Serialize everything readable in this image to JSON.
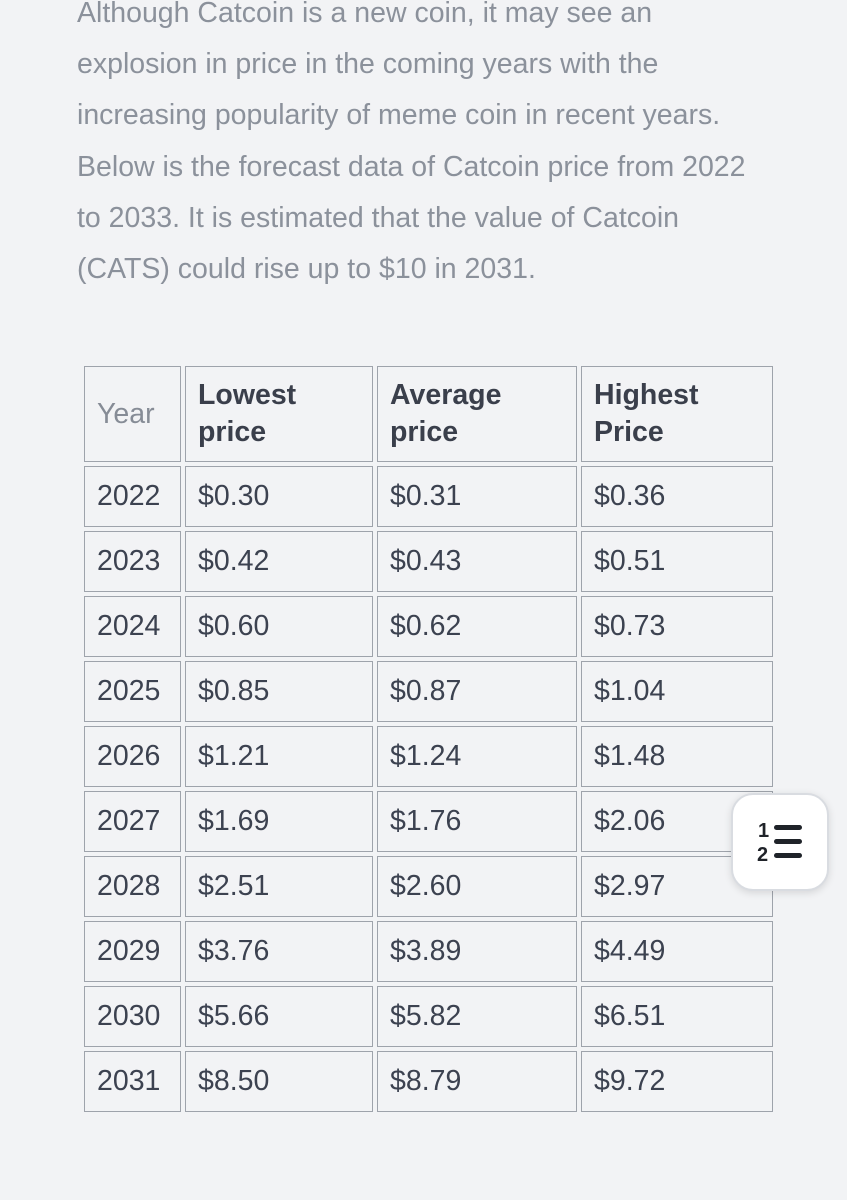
{
  "intro": {
    "text": "Although Catcoin is a new coin, it may see an explosion in price in the coming years with the increasing popularity of meme coin in recent years. Below is the forecast data of Catcoin price from 2022 to 2033. It is estimated that the value of Catcoin (CATS) could rise up to $10 in 2031."
  },
  "table": {
    "headers": {
      "year": "Year",
      "lowest": "Lowest price",
      "average": "Average price",
      "highest": "Highest Price"
    },
    "rows": [
      {
        "year": "2022",
        "lowest": "$0.30",
        "average": "$0.31",
        "highest": "$0.36"
      },
      {
        "year": "2023",
        "lowest": "$0.42",
        "average": "$0.43",
        "highest": "$0.51"
      },
      {
        "year": "2024",
        "lowest": "$0.60",
        "average": "$0.62",
        "highest": "$0.73"
      },
      {
        "year": "2025",
        "lowest": "$0.85",
        "average": "$0.87",
        "highest": "$1.04"
      },
      {
        "year": "2026",
        "lowest": "$1.21",
        "average": "$1.24",
        "highest": "$1.48"
      },
      {
        "year": "2027",
        "lowest": "$1.69",
        "average": "$1.76",
        "highest": "$2.06"
      },
      {
        "year": "2028",
        "lowest": "$2.51",
        "average": "$2.60",
        "highest": "$2.97"
      },
      {
        "year": "2029",
        "lowest": "$3.76",
        "average": "$3.89",
        "highest": "$4.49"
      },
      {
        "year": "2030",
        "lowest": "$5.66",
        "average": "$5.82",
        "highest": "$6.51"
      },
      {
        "year": "2031",
        "lowest": "$8.50",
        "average": "$8.79",
        "highest": "$9.72"
      }
    ]
  },
  "toc_button": {
    "icon": "numbered-list-icon",
    "icon_digits": [
      "1",
      "2"
    ],
    "color": "#1f2329"
  }
}
